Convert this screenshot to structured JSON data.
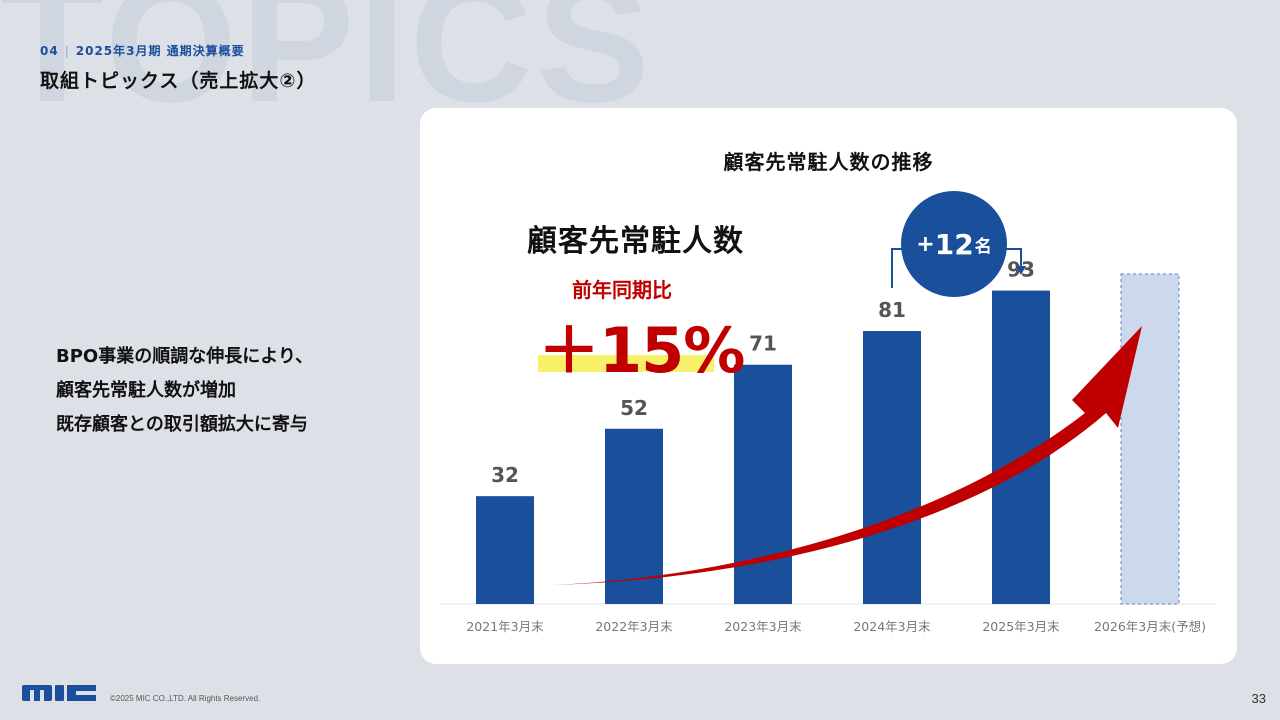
{
  "watermark": "TOPICS",
  "header": {
    "section_number": "04",
    "section_name": "2025年3月期 通期決算概要",
    "title": "取組トピックス（売上拡大②）"
  },
  "body_text": [
    "BPO事業の順調な伸長により、",
    "顧客先常駐人数が増加",
    "既存顧客との取引額拡大に寄与"
  ],
  "highlight": {
    "title": "顧客先常駐人数",
    "subtitle": "前年同期比",
    "value": "＋15%"
  },
  "badge": {
    "plus": "+",
    "number": "12",
    "unit": "名"
  },
  "chart_data": {
    "type": "bar",
    "title": "顧客先常駐人数の推移",
    "categories": [
      "2021年3月末",
      "2022年3月末",
      "2023年3月末",
      "2024年3月末",
      "2025年3月末",
      "2026年3月末(予想)"
    ],
    "values": [
      32,
      52,
      71,
      81,
      93,
      null
    ],
    "forecast_value": 100,
    "ylim": [
      0,
      100
    ],
    "xlabel": "",
    "ylabel": "",
    "grid": false,
    "colors": {
      "bar": "#1a4f9c",
      "forecast": "#ccd8ec",
      "arrow": "#c00000"
    }
  },
  "footer": {
    "logo_text": "MIC",
    "copyright": "©2025 MIC CO.,LTD. All Rights Reserved.",
    "page_number": "33"
  }
}
